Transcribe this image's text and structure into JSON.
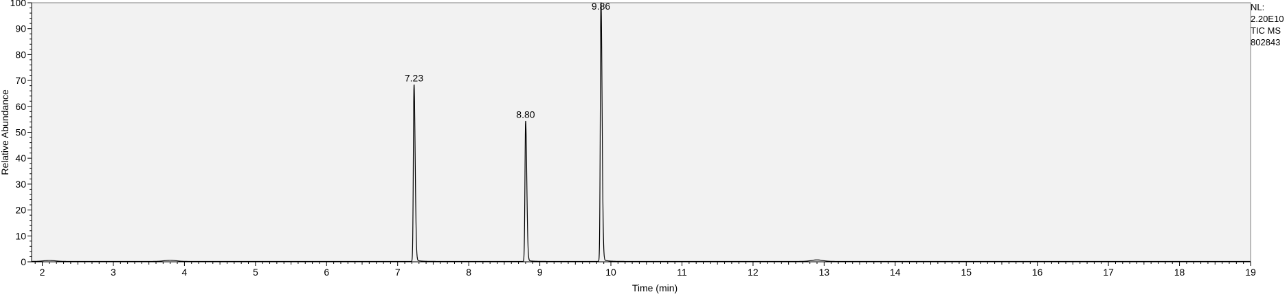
{
  "chart_data": {
    "type": "line",
    "title": "",
    "xlabel": "Time (min)",
    "ylabel": "Relative Abundance",
    "xlim": [
      1.85,
      19.0
    ],
    "ylim": [
      0,
      100
    ],
    "x_ticks": [
      2,
      3,
      4,
      5,
      6,
      7,
      8,
      9,
      10,
      11,
      12,
      13,
      14,
      15,
      16,
      17,
      18,
      19
    ],
    "y_ticks": [
      0,
      10,
      20,
      30,
      40,
      50,
      60,
      70,
      80,
      90,
      100
    ],
    "grid": false,
    "plot_background": "#f2f2f2",
    "line_color": "#000000",
    "peaks": [
      {
        "label": "7.23",
        "x": 7.23,
        "y": 68
      },
      {
        "label": "8.80",
        "x": 8.8,
        "y": 54
      },
      {
        "label": "9.86",
        "x": 9.86,
        "y": 100
      }
    ],
    "minor_bumps": [
      {
        "x": 2.1,
        "y": 0.4
      },
      {
        "x": 3.8,
        "y": 0.5
      },
      {
        "x": 12.9,
        "y": 0.6
      }
    ],
    "annotation": {
      "nl_label": "NL:",
      "nl_value": "2.20E10",
      "scan_filter": "TIC  MS",
      "sample_id": "802843"
    }
  }
}
